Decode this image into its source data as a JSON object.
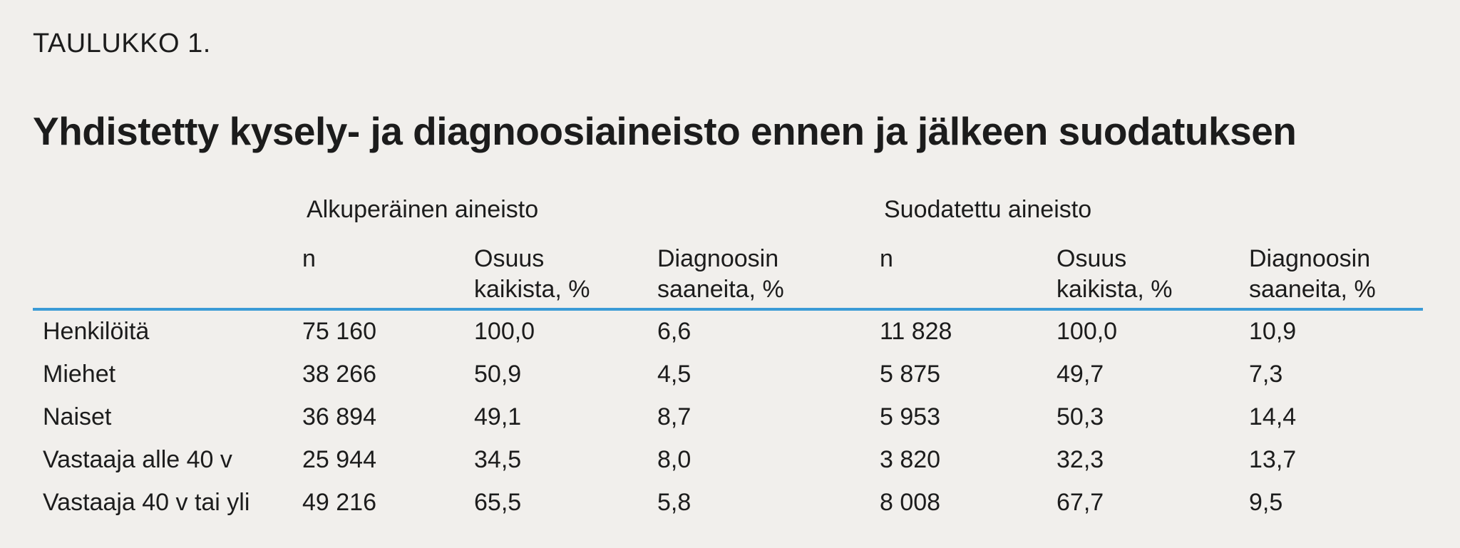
{
  "table_label": "TAULUKKO 1.",
  "title": "Yhdistetty kysely- ja diagnoosiaineisto ennen ja jälkeen suodatuksen",
  "groups": [
    "Alkuperäinen aineisto",
    "Suodatettu aineisto"
  ],
  "columns": [
    {
      "line1": "n",
      "line2": ""
    },
    {
      "line1": "Osuus",
      "line2": "kaikista, %"
    },
    {
      "line1": "Diagnoosin",
      "line2": "saaneita, %"
    },
    {
      "line1": "n",
      "line2": ""
    },
    {
      "line1": "Osuus",
      "line2": "kaikista, %"
    },
    {
      "line1": "Diagnoosin",
      "line2": "saaneita, %"
    }
  ],
  "rows": [
    {
      "label": "Henkilöitä",
      "values": [
        "75 160",
        "100,0",
        "6,6",
        "11 828",
        "100,0",
        "10,9"
      ]
    },
    {
      "label": "Miehet",
      "values": [
        "38 266",
        "50,9",
        "4,5",
        "5 875",
        "49,7",
        "7,3"
      ]
    },
    {
      "label": "Naiset",
      "values": [
        "36 894",
        "49,1",
        "8,7",
        "5 953",
        "50,3",
        "14,4"
      ]
    },
    {
      "label": "Vastaaja alle 40 v",
      "values": [
        "25 944",
        "34,5",
        "8,0",
        "3 820",
        "32,3",
        "13,7"
      ]
    },
    {
      "label": "Vastaaja 40 v tai yli",
      "values": [
        "49 216",
        "65,5",
        "5,8",
        "8 008",
        "67,7",
        "9,5"
      ]
    }
  ],
  "colors": {
    "background": "#f1efec",
    "rule": "#3b9bd6",
    "text": "#1c1c1c"
  }
}
